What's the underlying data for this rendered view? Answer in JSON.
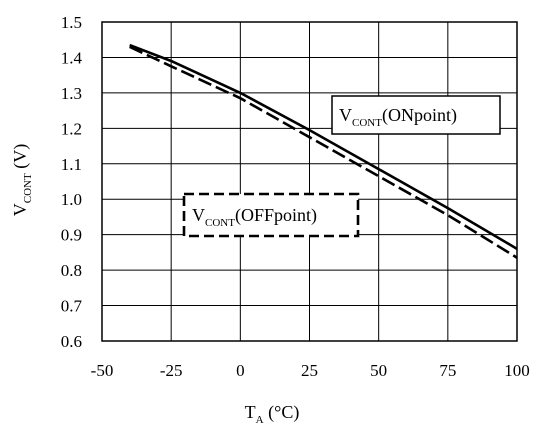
{
  "chart_data": {
    "type": "line",
    "xlabel": {
      "main": "T",
      "sub": "A",
      "unit": " (°C)"
    },
    "ylabel": {
      "main": "V",
      "sub": "CONT",
      "unit": " (V)"
    },
    "xlim": [
      -50,
      100
    ],
    "ylim": [
      0.6,
      1.5
    ],
    "x_ticks": [
      -50,
      -25,
      0,
      25,
      50,
      75,
      100
    ],
    "x_tick_labels": [
      "-50",
      "-25",
      "0",
      "25",
      "50",
      "75",
      "100"
    ],
    "y_ticks": [
      0.6,
      0.7,
      0.8,
      0.9,
      1.0,
      1.1,
      1.2,
      1.3,
      1.4,
      1.5
    ],
    "y_tick_labels": [
      "0.6",
      "0.7",
      "0.8",
      "0.9",
      "1.0",
      "1.1",
      "1.2",
      "1.3",
      "1.4",
      "1.5"
    ],
    "grid": true,
    "series": [
      {
        "name": "V_CONT(ONpoint)",
        "label": {
          "main": "V",
          "sub": "CONT",
          "rest": "(ONpoint)"
        },
        "style": "solid",
        "x": [
          -40,
          -25,
          0,
          25,
          50,
          75,
          100
        ],
        "y": [
          1.435,
          1.39,
          1.3,
          1.195,
          1.085,
          0.975,
          0.86
        ]
      },
      {
        "name": "V_CONT(OFFpoint)",
        "label": {
          "main": "V",
          "sub": "CONT",
          "rest": "(OFFpoint)"
        },
        "style": "dashed",
        "x": [
          -40,
          -25,
          0,
          25,
          50,
          75,
          100
        ],
        "y": [
          1.43,
          1.375,
          1.285,
          1.175,
          1.065,
          0.955,
          0.835
        ]
      }
    ]
  }
}
